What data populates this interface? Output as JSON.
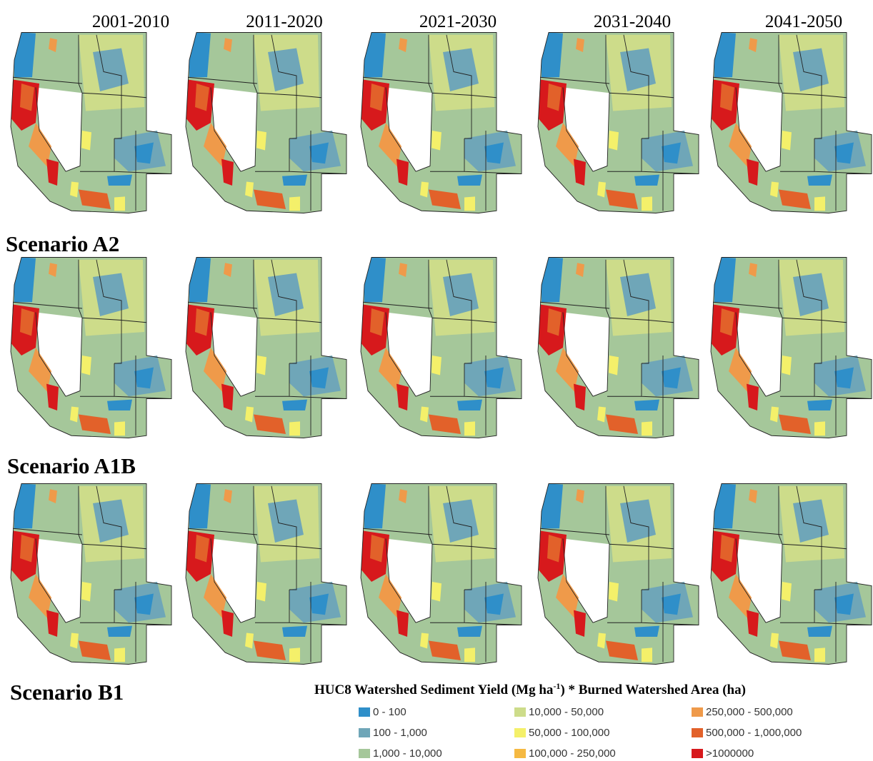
{
  "columns": [
    "2001-2010",
    "2011-2020",
    "2021-2030",
    "2031-2040",
    "2041-2050"
  ],
  "scenarios": [
    "Scenario A2",
    "Scenario A1B",
    "Scenario B1"
  ],
  "legend": {
    "title": {
      "before": "HUC8 Watershed Sediment Yield (Mg ha",
      "superscript": "-1",
      "after": ") * Burned Watershed Area (ha)"
    },
    "items": [
      {
        "label": "0 - 100",
        "color": "#2f8fc9"
      },
      {
        "label": "100 - 1,000",
        "color": "#6fa6b8"
      },
      {
        "label": "1,000 - 10,000",
        "color": "#a5c79a"
      },
      {
        "label": "10,000 - 50,000",
        "color": "#cddc8a"
      },
      {
        "label": "50,000 - 100,000",
        "color": "#f4f06a"
      },
      {
        "label": "100,000 - 250,000",
        "color": "#f5b942"
      },
      {
        "label": "250,000 - 500,000",
        "color": "#ef9a4a"
      },
      {
        "label": "500,000 - 1,000,000",
        "color": "#e2612a"
      },
      {
        "label": ">1000000",
        "color": "#d7191c"
      }
    ]
  }
}
